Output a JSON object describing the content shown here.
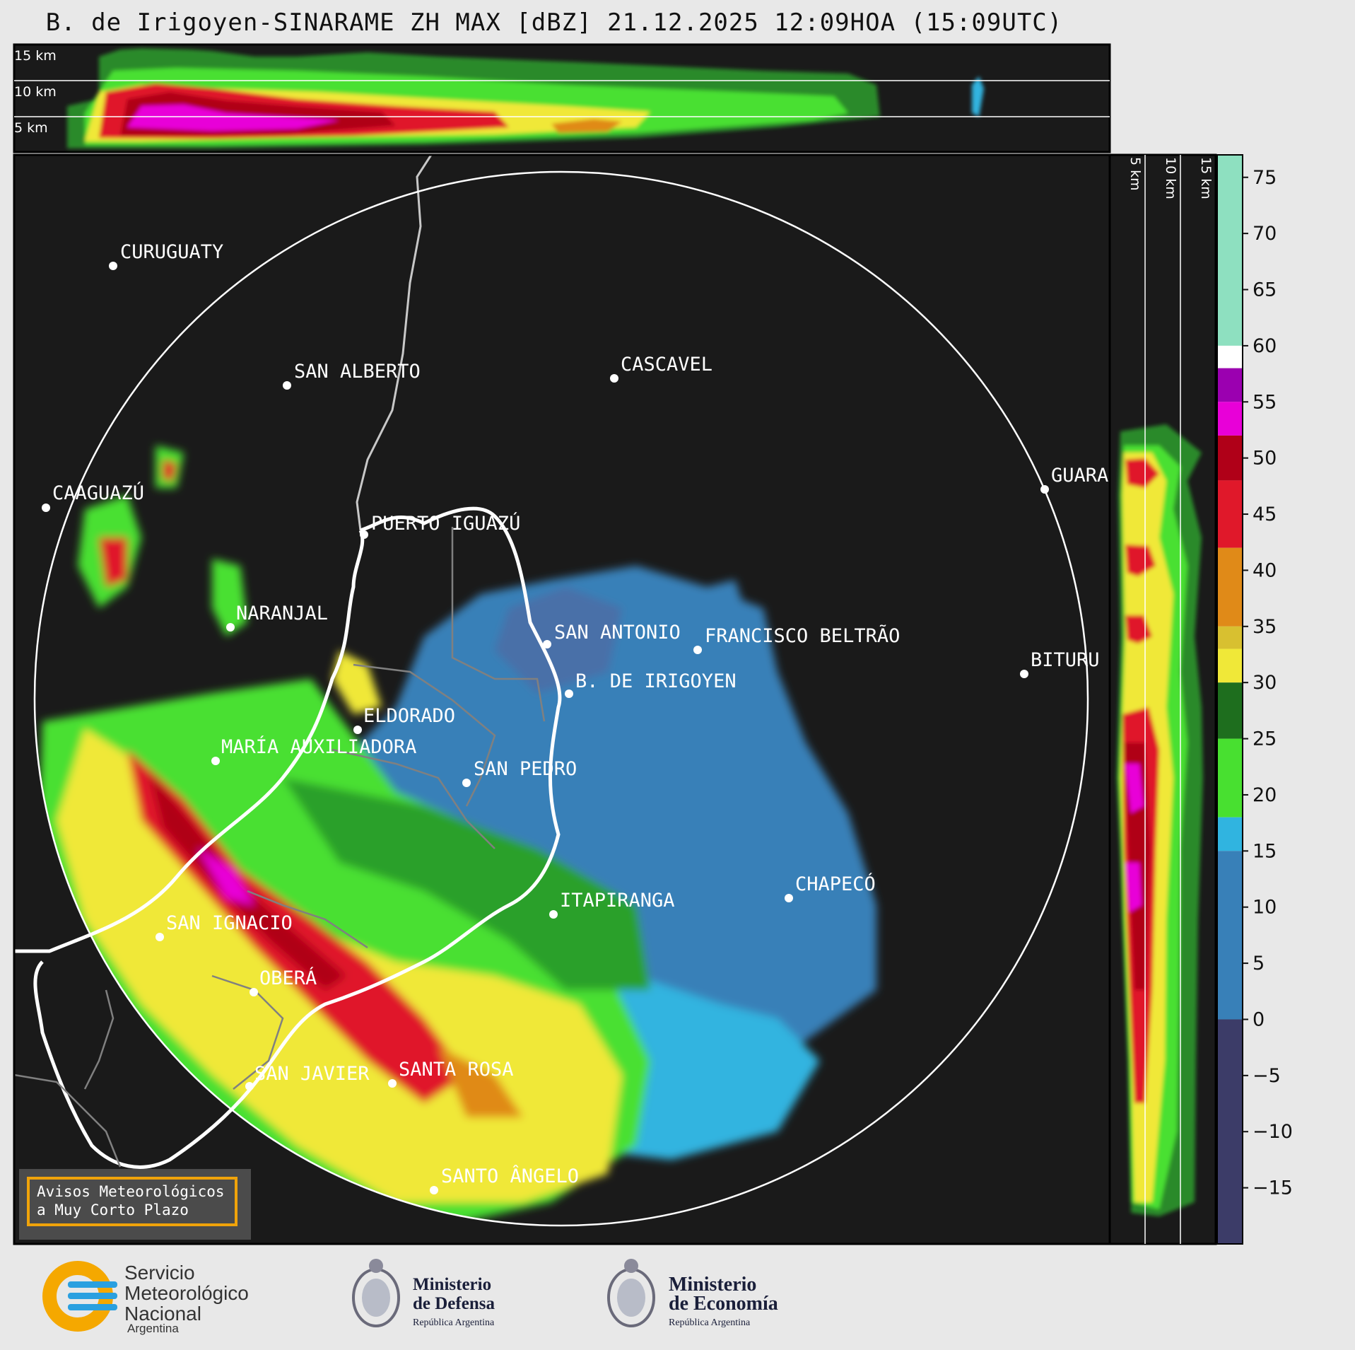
{
  "title": "B. de Irigoyen-SINARAME ZH MAX [dBZ] 21.12.2025 12:09HOA (15:09UTC)",
  "top_panel": {
    "height_labels": [
      "15 km",
      "10 km",
      "5 km"
    ]
  },
  "side_panel": {
    "height_labels": [
      "5 km",
      "10 km",
      "15 km"
    ]
  },
  "colorbar": {
    "ticks": [
      "75",
      "70",
      "65",
      "60",
      "55",
      "50",
      "45",
      "40",
      "35",
      "30",
      "25",
      "20",
      "15",
      "10",
      "5",
      "0",
      "−5",
      "−10",
      "−15"
    ],
    "range": [
      -20,
      77
    ],
    "colors": {
      "light_teal": "#8ee0c0",
      "white": "#ffffff",
      "purple": "#9b00b0",
      "magenta": "#e800d8",
      "dark_red": "#b00018",
      "red": "#e0182a",
      "orange": "#e08a18",
      "gold": "#d8c030",
      "yellow": "#f0e838",
      "dark_green": "#1e6e1e",
      "green": "#48e030",
      "cyan": "#30b4e0",
      "blue": "#3880b8",
      "navy": "#3c3c68"
    }
  },
  "map": {
    "cities": [
      {
        "name": "CURUGUATY"
      },
      {
        "name": "SAN ALBERTO"
      },
      {
        "name": "CASCAVEL"
      },
      {
        "name": "CAAGUAZÚ"
      },
      {
        "name": "GUARA"
      },
      {
        "name": "PUERTO IGUAZÚ"
      },
      {
        "name": "NARANJAL"
      },
      {
        "name": "SAN ANTONIO"
      },
      {
        "name": "FRANCISCO BELTRÃO"
      },
      {
        "name": "BITURU"
      },
      {
        "name": "B. DE IRIGOYEN"
      },
      {
        "name": "ELDORADO"
      },
      {
        "name": "MARÍA AUXILIADORA"
      },
      {
        "name": "SAN PEDRO"
      },
      {
        "name": "CHAPECÓ"
      },
      {
        "name": "ITAPIRANGA"
      },
      {
        "name": "SAN IGNACIO"
      },
      {
        "name": "OBERÁ"
      },
      {
        "name": "SAN JAVIER"
      },
      {
        "name": "SANTA ROSA"
      },
      {
        "name": "SANTO ÂNGELO"
      }
    ]
  },
  "notice": {
    "line1": "Avisos Meteorológicos",
    "line2": "a Muy Corto Plazo"
  },
  "footer": {
    "smn_line1": "Servicio",
    "smn_line2": "Meteorológico",
    "smn_line3": "Nacional",
    "smn_country": "Argentina",
    "ministry1_line1": "Ministerio",
    "ministry1_line2": "de Defensa",
    "ministry1_sub": "República Argentina",
    "ministry2_line1": "Ministerio",
    "ministry2_line2": "de Economía",
    "ministry2_sub": "República Argentina"
  }
}
